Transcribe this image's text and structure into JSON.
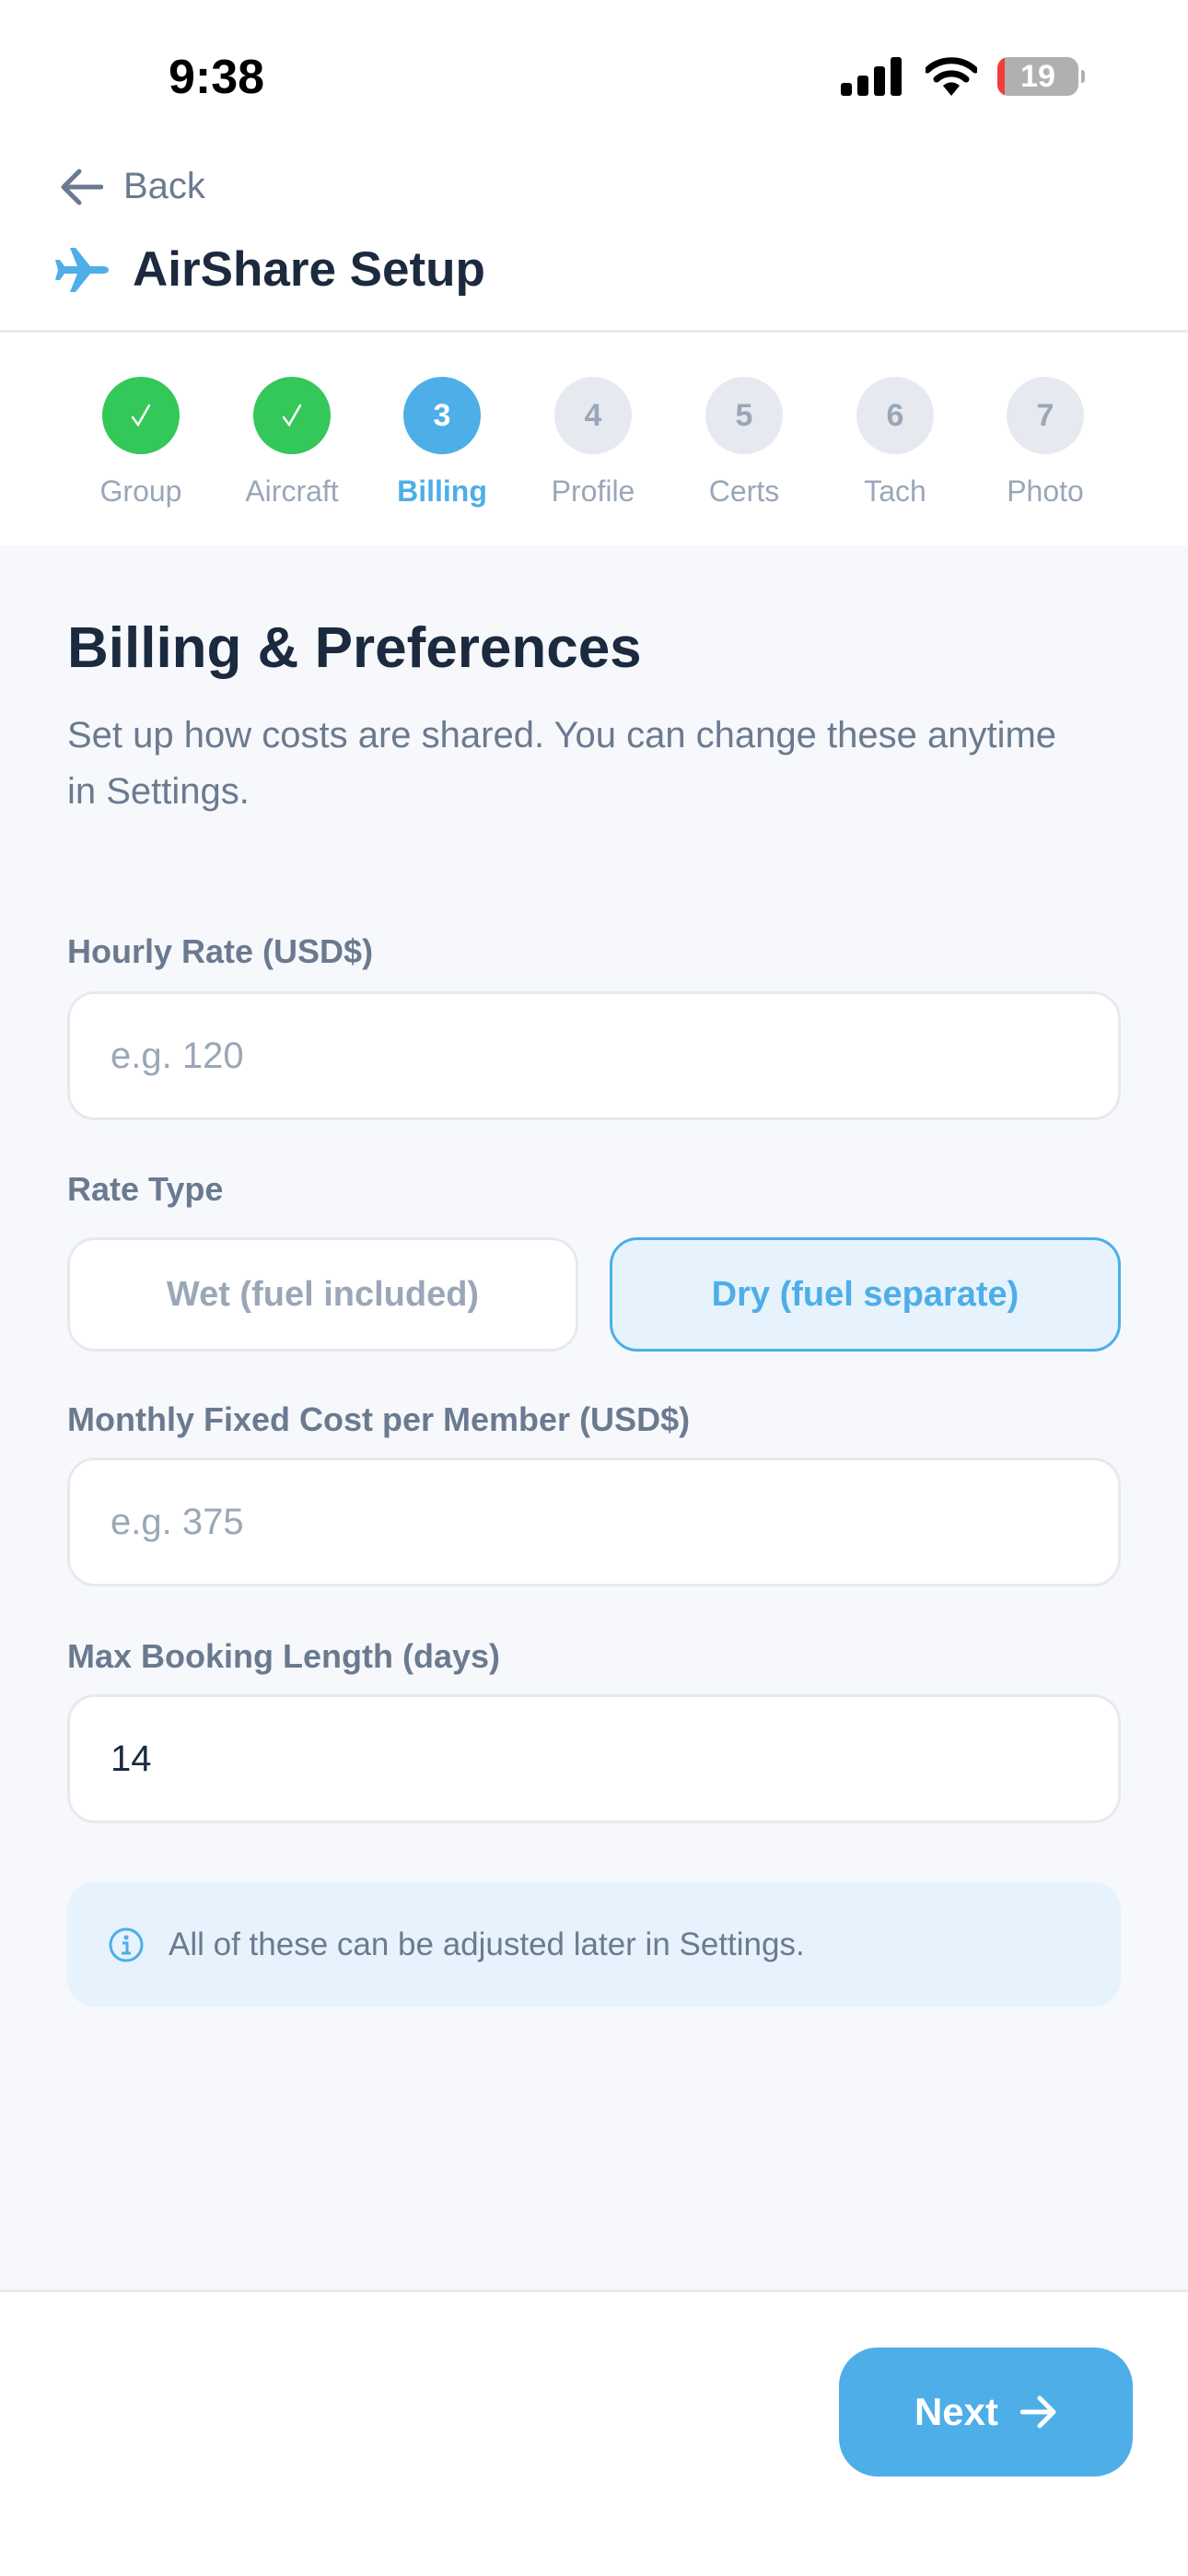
{
  "status_bar": {
    "time": "9:38",
    "battery": "19",
    "battery_color": "#f23c3c"
  },
  "header": {
    "back_label": "Back",
    "title": "AirShare Setup",
    "icon": "airplane-icon",
    "accent": "#4daee8"
  },
  "stepper": {
    "current": 3,
    "steps": [
      {
        "number": "1",
        "label": "Group",
        "state": "done"
      },
      {
        "number": "2",
        "label": "Aircraft",
        "state": "done"
      },
      {
        "number": "3",
        "label": "Billing",
        "state": "active"
      },
      {
        "number": "4",
        "label": "Profile",
        "state": "pending"
      },
      {
        "number": "5",
        "label": "Certs",
        "state": "pending"
      },
      {
        "number": "6",
        "label": "Tach",
        "state": "pending"
      },
      {
        "number": "7",
        "label": "Photo",
        "state": "pending"
      }
    ],
    "colors": {
      "done": "#34c759",
      "active": "#4daee8",
      "pending": "#e6e9ef"
    }
  },
  "form": {
    "heading": "Billing & Preferences",
    "subtitle": "Set up how costs are shared. You can change these anytime in Settings.",
    "hourly_rate": {
      "label": "Hourly Rate (USD$)",
      "placeholder": "e.g. 120",
      "value": ""
    },
    "rate_type": {
      "label": "Rate Type",
      "options": [
        "Wet (fuel included)",
        "Dry (fuel separate)"
      ],
      "selected": "Dry (fuel separate)"
    },
    "monthly_fixed": {
      "label": "Monthly Fixed Cost per Member (USD$)",
      "placeholder": "e.g. 375",
      "value": ""
    },
    "max_booking": {
      "label": "Max Booking Length (days)",
      "placeholder": "",
      "value": "14"
    },
    "info_text": "All of these can be adjusted later in Settings."
  },
  "footer": {
    "next_label": "Next"
  }
}
